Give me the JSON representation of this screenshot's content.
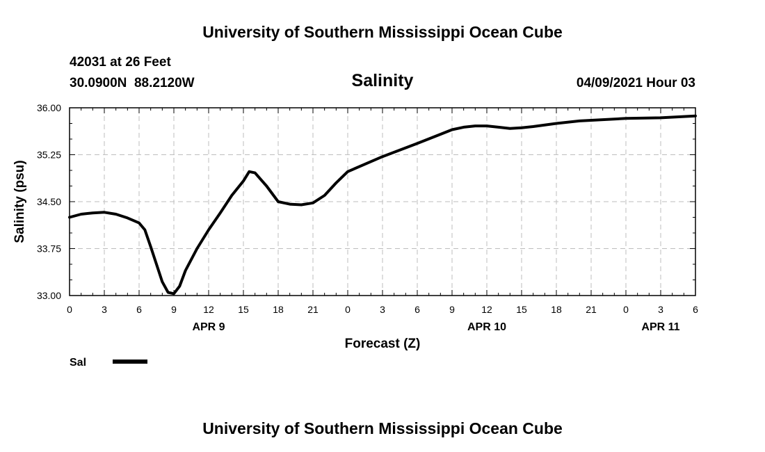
{
  "header": {
    "title_top": "University of Southern Mississippi Ocean Cube",
    "station_line": "42031 at 26 Feet",
    "coords_line": "30.0900N  88.2120W",
    "datetime": "04/09/2021 Hour 03",
    "title_bottom": "University of Southern Mississippi Ocean Cube"
  },
  "chart_data": {
    "type": "line",
    "title": "Salinity",
    "xlabel": "Forecast (Z)",
    "ylabel": "Salinity (psu)",
    "ylim": [
      33.0,
      36.0
    ],
    "yticks": [
      "33.00",
      "33.75",
      "34.50",
      "35.25",
      "36.00"
    ],
    "xlim": [
      0,
      54
    ],
    "xtick_labels": [
      "0",
      "3",
      "6",
      "9",
      "12",
      "15",
      "18",
      "21",
      "0",
      "3",
      "6",
      "9",
      "12",
      "15",
      "18",
      "21",
      "0",
      "3",
      "6"
    ],
    "date_labels": [
      {
        "label": "APR 9",
        "hour": 12
      },
      {
        "label": "APR 10",
        "hour": 36
      },
      {
        "label": "APR 11",
        "hour": 51
      }
    ],
    "grid": true,
    "legend": {
      "position": "bottom-left",
      "entries": [
        "Sal"
      ]
    },
    "series": [
      {
        "name": "Sal",
        "color": "#000000",
        "x": [
          0,
          1,
          2,
          3,
          4,
          5,
          6,
          6.5,
          7,
          7.5,
          8,
          8.5,
          9,
          9.5,
          10,
          11,
          12,
          13,
          14,
          15,
          15.5,
          16,
          17,
          18,
          19,
          20,
          21,
          22,
          23,
          24,
          27,
          30,
          33,
          34,
          35,
          36,
          37,
          38,
          39,
          40,
          42,
          44,
          45,
          48,
          51,
          54
        ],
        "values": [
          34.25,
          34.3,
          34.32,
          34.33,
          34.3,
          34.24,
          34.16,
          34.05,
          33.78,
          33.5,
          33.22,
          33.05,
          33.03,
          33.15,
          33.4,
          33.75,
          34.05,
          34.32,
          34.6,
          34.83,
          34.98,
          34.96,
          34.75,
          34.5,
          34.46,
          34.45,
          34.48,
          34.6,
          34.8,
          34.98,
          35.22,
          35.43,
          35.65,
          35.69,
          35.71,
          35.71,
          35.69,
          35.67,
          35.68,
          35.7,
          35.75,
          35.79,
          35.8,
          35.83,
          35.84,
          35.87
        ]
      }
    ]
  }
}
